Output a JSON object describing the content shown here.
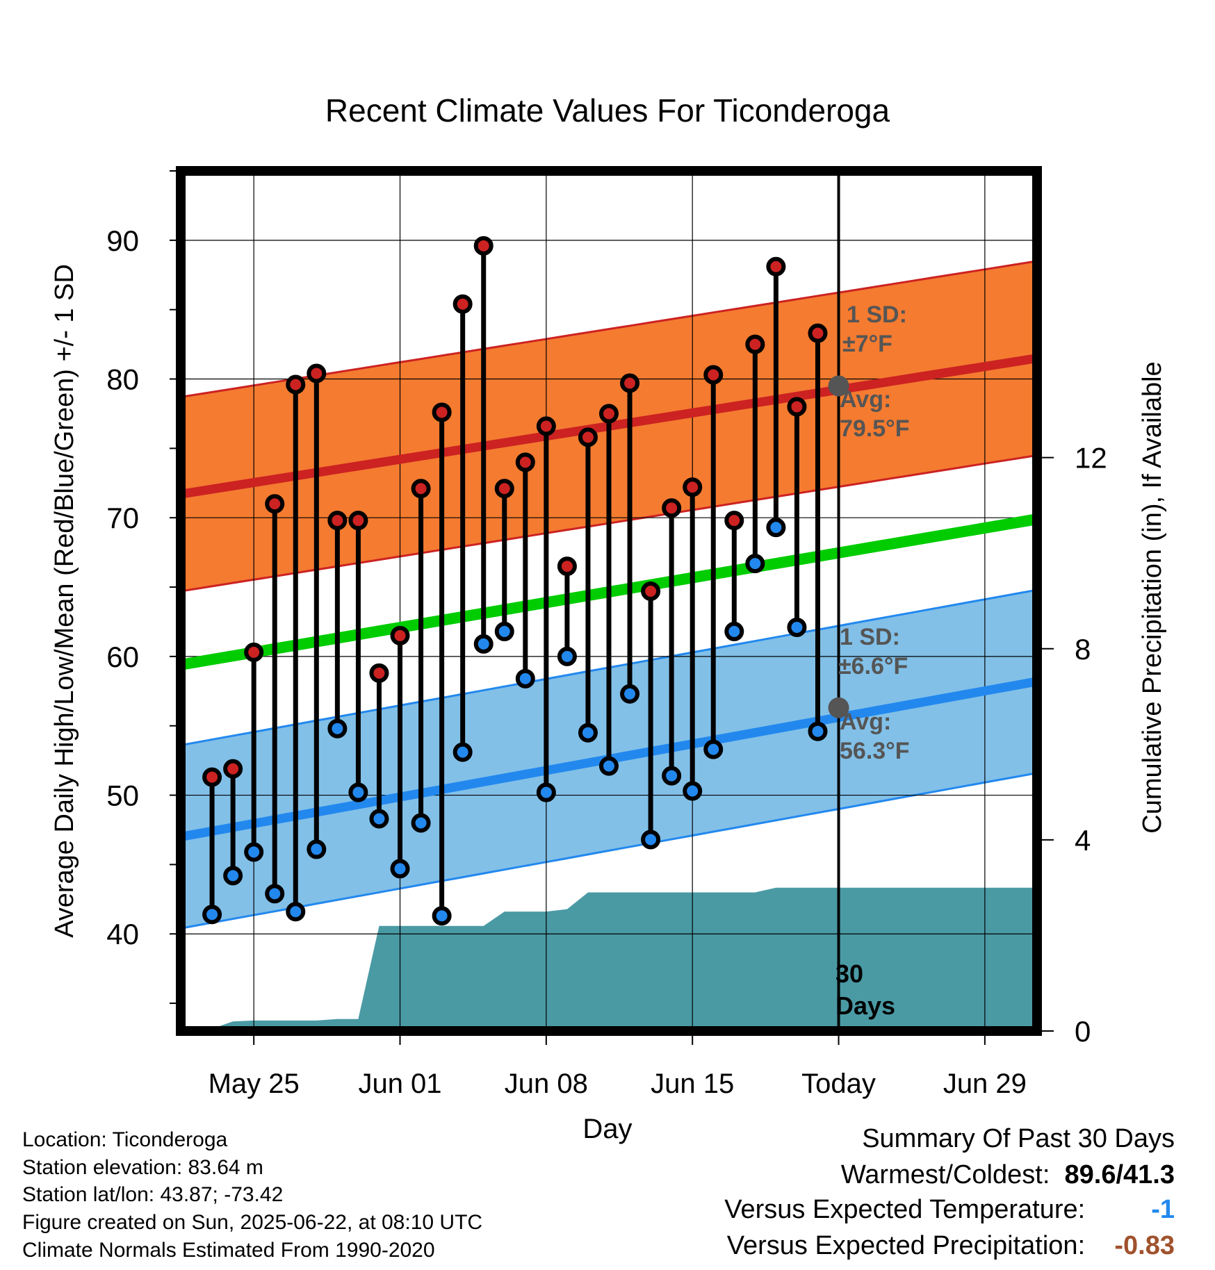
{
  "chart_data": {
    "type": "line",
    "title": "Recent Climate Values For Ticonderoga",
    "xlabel": "Day",
    "ylabel": "Average Daily High/Low/Mean (Red/Blue/Green) +/- 1 SD",
    "y2label": "Cumulative Precipitation (in), If Available",
    "ylim": [
      33,
      95
    ],
    "y2lim": [
      0,
      18
    ],
    "x_ticks": [
      "May 25",
      "Jun 01",
      "Jun 08",
      "Jun 15",
      "Today",
      "Jun 29"
    ],
    "x_tick_days": [
      3,
      10,
      17,
      24,
      31,
      38
    ],
    "xlim": [
      -0.5,
      40.5
    ],
    "y_ticks": [
      40,
      50,
      60,
      70,
      80,
      90
    ],
    "y2_ticks": [
      0,
      4,
      8,
      12
    ],
    "today_day": 31,
    "today_label": "30\nDays",
    "days": [
      1,
      2,
      3,
      4,
      5,
      6,
      7,
      8,
      9,
      10,
      11,
      12,
      13,
      14,
      15,
      16,
      17,
      18,
      19,
      20,
      21,
      22,
      23,
      24,
      25,
      26,
      27,
      28,
      29,
      30
    ],
    "highs": [
      51.3,
      51.9,
      60.3,
      71.0,
      79.6,
      80.4,
      69.8,
      69.8,
      58.8,
      61.5,
      72.1,
      77.6,
      85.4,
      89.6,
      72.1,
      74.0,
      76.6,
      66.5,
      75.8,
      77.5,
      79.7,
      64.7,
      70.7,
      72.2,
      80.3,
      69.8,
      82.5,
      88.1,
      78.0,
      83.3
    ],
    "lows": [
      41.4,
      44.2,
      45.9,
      42.9,
      41.6,
      46.1,
      54.8,
      50.2,
      48.3,
      44.7,
      48.0,
      41.3,
      53.1,
      60.9,
      61.8,
      58.4,
      50.2,
      60.0,
      54.5,
      52.1,
      57.3,
      46.8,
      51.4,
      50.3,
      53.3,
      61.8,
      66.7,
      69.3,
      62.1,
      54.6
    ],
    "normal_high": {
      "start": 71.7,
      "end": 81.5,
      "sd": 7,
      "label_sd": "1 SD:",
      "label_sd_value": "±7°F",
      "label_avg": "Avg:",
      "label_avg_value": "79.5°F",
      "today_value": 79.5
    },
    "normal_low": {
      "start": 47.0,
      "end": 58.2,
      "sd": 6.6,
      "label_sd": "1 SD:",
      "label_sd_value": "±6.6°F",
      "label_avg": "Avg:",
      "label_avg_value": "56.3°F",
      "today_value": 56.3
    },
    "normal_mean": {
      "start": 59.4,
      "end": 69.9
    },
    "precip": {
      "days": [
        0,
        1,
        2,
        3,
        4,
        5,
        6,
        7,
        8,
        9,
        9.5,
        10,
        11,
        12,
        13,
        14,
        15,
        16,
        17,
        18,
        19,
        20,
        21,
        22,
        23,
        24,
        25,
        26,
        27,
        28,
        29,
        30,
        31,
        40.5
      ],
      "values": [
        0,
        0.05,
        0.2,
        0.22,
        0.22,
        0.22,
        0.22,
        0.25,
        0.25,
        2.2,
        2.2,
        2.2,
        2.2,
        2.2,
        2.2,
        2.2,
        2.5,
        2.5,
        2.5,
        2.55,
        2.9,
        2.9,
        2.9,
        2.9,
        2.9,
        2.9,
        2.9,
        2.9,
        2.9,
        3.0,
        3.0,
        3.0,
        3.0,
        3.0
      ]
    },
    "grid": true,
    "colors": {
      "high": "#cc2222",
      "low": "#2288ee",
      "mean": "#00cc00",
      "high_band": "#f47b30",
      "low_band": "#82c0e8",
      "precip": "#4a9aa4",
      "annotation": "#555555"
    }
  },
  "footer": {
    "location": "Location: Ticonderoga",
    "elevation": "Station elevation: 83.64 m",
    "latlon": "Station lat/lon: 43.87; -73.42",
    "created": "Figure created on Sun, 2025-06-22, at 08:10 UTC",
    "normals": "Climate Normals Estimated From 1990-2020"
  },
  "summary": {
    "title": "Summary Of Past 30 Days",
    "warmest_label": "Warmest/Coldest:",
    "warmest_value": "89.6/41.3",
    "temp_label": "Versus Expected Temperature:",
    "temp_value": "-1",
    "precip_label": "Versus Expected Precipitation:",
    "precip_value": "-0.83",
    "temp_color": "#2288ee",
    "precip_color": "#a0522d"
  }
}
